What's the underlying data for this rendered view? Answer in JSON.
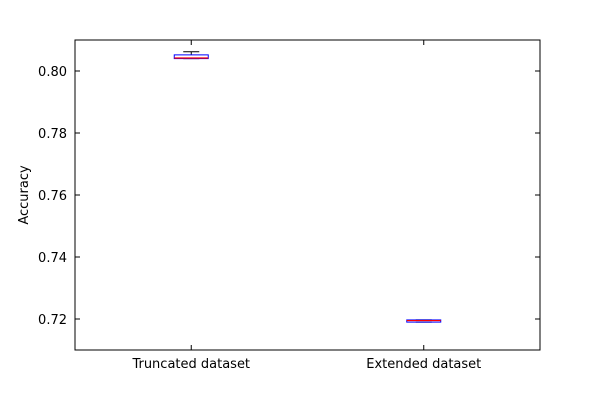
{
  "chart_data": {
    "type": "box",
    "ylabel": "Accuracy",
    "xlabel": "",
    "ylim": [
      0.71,
      0.81
    ],
    "yticks": [
      "0.72",
      "0.74",
      "0.76",
      "0.78",
      "0.80"
    ],
    "grid": false,
    "categories": [
      "Truncated dataset",
      "Extended dataset"
    ],
    "boxes": [
      {
        "category": "Truncated dataset",
        "whisker_low": 0.804,
        "q1": 0.804,
        "median": 0.8042,
        "q3": 0.8052,
        "whisker_high": 0.8062
      },
      {
        "category": "Extended dataset",
        "whisker_low": 0.719,
        "q1": 0.719,
        "median": 0.7195,
        "q3": 0.7197,
        "whisker_high": 0.7197
      }
    ],
    "colors": {
      "box": "#0000ff",
      "median": "#ff0000",
      "whisker": "#000000"
    }
  }
}
